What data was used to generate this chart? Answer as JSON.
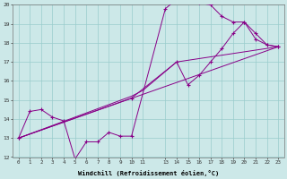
{
  "bg_color": "#cce8e8",
  "grid_color": "#99cccc",
  "line_color": "#880088",
  "xlabel": "Windchill (Refroidissement éolien,°C)",
  "xmin": -0.5,
  "xmax": 23.5,
  "ymin": 12,
  "ymax": 20,
  "xtick_positions": [
    0,
    1,
    2,
    3,
    4,
    5,
    6,
    7,
    8,
    9,
    10,
    11,
    13,
    14,
    15,
    16,
    17,
    18,
    19,
    20,
    21,
    22,
    23
  ],
  "xtick_labels": [
    "0",
    "1",
    "2",
    "3",
    "4",
    "5",
    "6",
    "7",
    "8",
    "9",
    "10",
    "11",
    "13",
    "14",
    "15",
    "16",
    "17",
    "18",
    "19",
    "20",
    "21",
    "22",
    "23"
  ],
  "ytick_positions": [
    12,
    13,
    14,
    15,
    16,
    17,
    18,
    19,
    20
  ],
  "series1_x": [
    0,
    1,
    2,
    3,
    4,
    5,
    6,
    7,
    8,
    9,
    10,
    13,
    14,
    15,
    16,
    17,
    18,
    19,
    20,
    21,
    22,
    23
  ],
  "series1_y": [
    13,
    14.4,
    14.5,
    14.1,
    13.9,
    11.9,
    12.8,
    12.8,
    13.3,
    13.1,
    13.1,
    19.8,
    20.3,
    20.3,
    20.1,
    20.0,
    19.4,
    19.1,
    19.1,
    18.5,
    17.9,
    17.8
  ],
  "series2_x": [
    0,
    10,
    14,
    15,
    16,
    17,
    18,
    19,
    20,
    21,
    22,
    23
  ],
  "series2_y": [
    13,
    15.1,
    17.0,
    15.8,
    16.3,
    17.0,
    17.7,
    18.5,
    19.1,
    18.2,
    17.9,
    17.8
  ],
  "series3_x": [
    0,
    23
  ],
  "series3_y": [
    13,
    17.8
  ],
  "series4_x": [
    0,
    10,
    11,
    14,
    23
  ],
  "series4_y": [
    13,
    15.2,
    15.5,
    17.0,
    17.8
  ]
}
